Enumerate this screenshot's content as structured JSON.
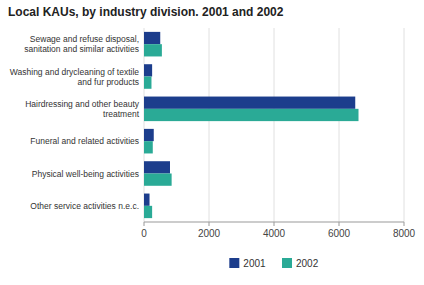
{
  "chart_data": {
    "type": "bar",
    "orientation": "horizontal",
    "title": "Local KAUs, by industry division. 2001 and 2002",
    "categories": [
      "Sewage and refuse disposal,\nsanitation and similar activities",
      "Washing and drycleaning of textile\nand fur products",
      "Hairdressing and other beauty\ntreatment",
      "Funeral and related activities",
      "Physical well-being activities",
      "Other service activities n.e.c."
    ],
    "series": [
      {
        "name": "2001",
        "color": "#1c3d8c",
        "values": [
          500,
          250,
          6500,
          300,
          800,
          170
        ]
      },
      {
        "name": "2002",
        "color": "#2aaa96",
        "values": [
          550,
          230,
          6600,
          270,
          850,
          250
        ]
      }
    ],
    "xlim": [
      0,
      8000
    ],
    "xticks": [
      0,
      2000,
      4000,
      6000,
      8000
    ],
    "grid": true,
    "legend": "bottom"
  }
}
